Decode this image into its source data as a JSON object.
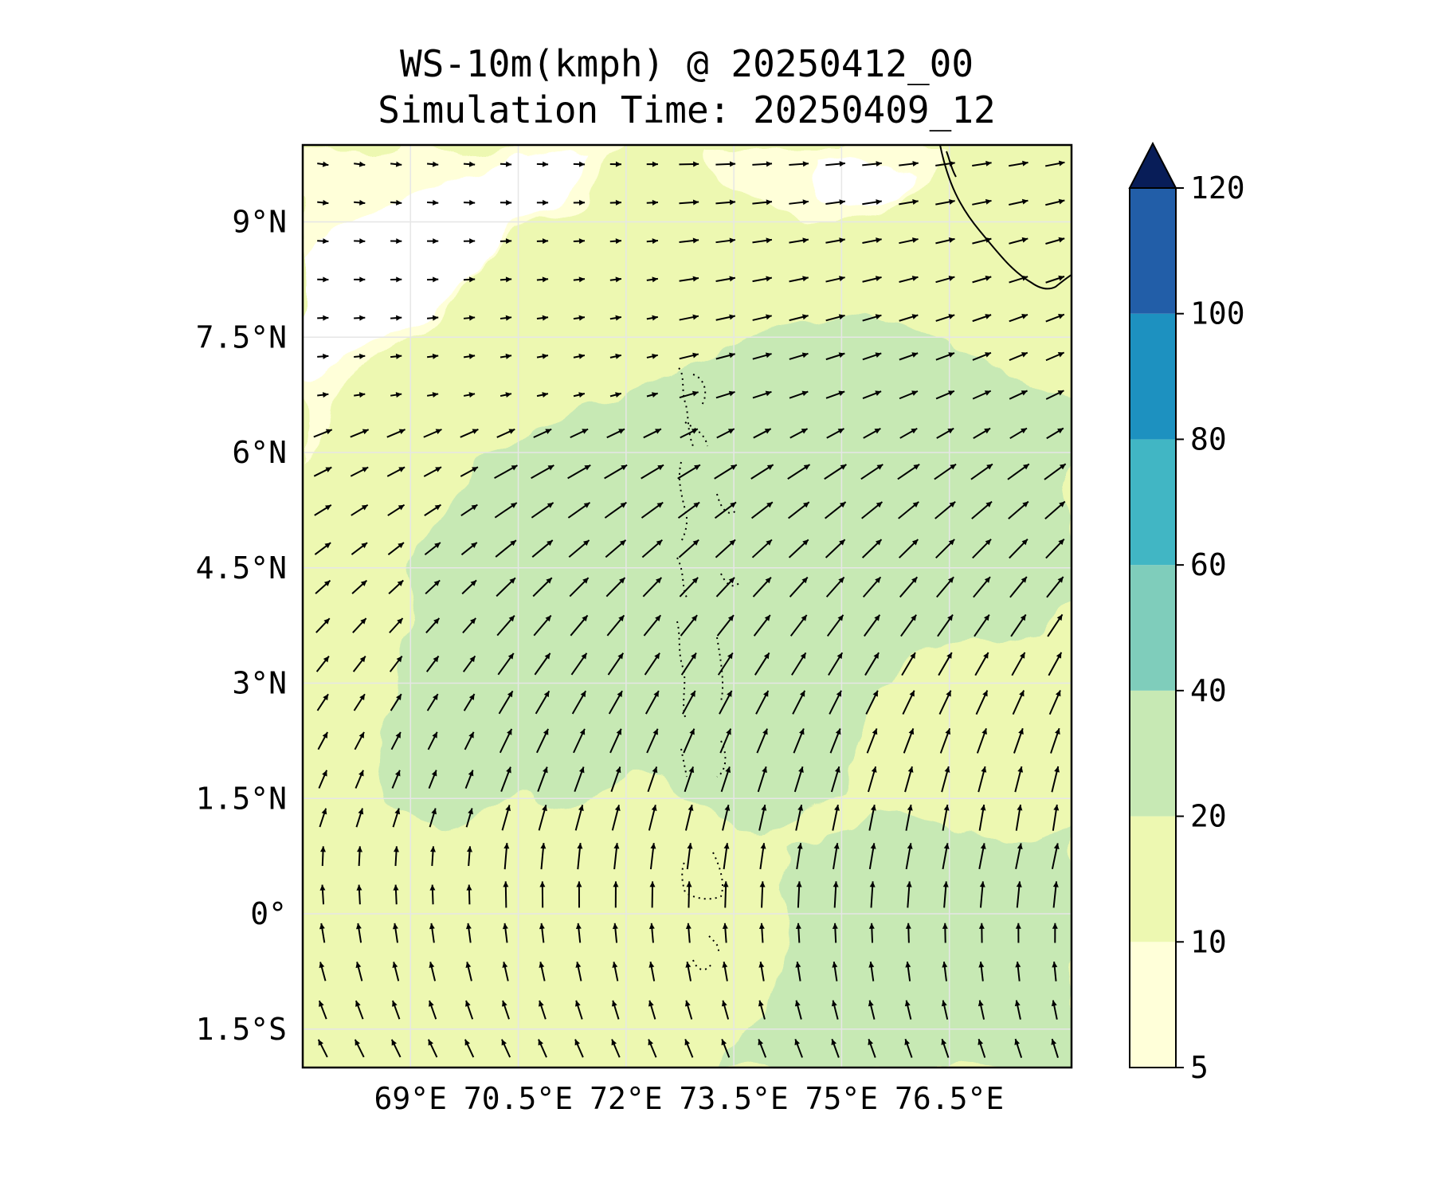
{
  "chart_data": {
    "type": "map",
    "title": "WS-10m(kmph) @ 20250412_00",
    "subtitle": "Simulation Time: 20250409_12",
    "variable": "10 m wind speed (kmph) with wind direction arrows",
    "lon_range": [
      67.5,
      78.2
    ],
    "lat_range": [
      -2.0,
      10.0
    ],
    "x_ticks": [
      {
        "value": 69.0,
        "label": "69°E"
      },
      {
        "value": 70.5,
        "label": "70.5°E"
      },
      {
        "value": 72.0,
        "label": "72°E"
      },
      {
        "value": 73.5,
        "label": "73.5°E"
      },
      {
        "value": 75.0,
        "label": "75°E"
      },
      {
        "value": 76.5,
        "label": "76.5°E"
      }
    ],
    "y_ticks": [
      {
        "value": 9.0,
        "label": "9°N"
      },
      {
        "value": 7.5,
        "label": "7.5°N"
      },
      {
        "value": 6.0,
        "label": "6°N"
      },
      {
        "value": 4.5,
        "label": "4.5°N"
      },
      {
        "value": 3.0,
        "label": "3°N"
      },
      {
        "value": 1.5,
        "label": "1.5°N"
      },
      {
        "value": 0.0,
        "label": "0°"
      },
      {
        "value": -1.5,
        "label": "1.5°S"
      }
    ],
    "colorbar": {
      "levels": [
        5,
        10,
        20,
        40,
        60,
        80,
        100,
        120
      ],
      "labels": [
        "5",
        "10",
        "20",
        "40",
        "60",
        "80",
        "100",
        "120"
      ],
      "colors": [
        "#ffffd9",
        "#edf8b1",
        "#c7e9b4",
        "#7fcdbb",
        "#41b6c4",
        "#1d91c0",
        "#225ea8",
        "#253494"
      ],
      "extend_color": "#081d58",
      "extend": "max"
    },
    "colors": {
      "below_min": "#ffffff",
      "band_5_10": "#ffffd9",
      "band_10_20": "#edf8b1",
      "band_20_40": "#c7e9b4",
      "grid": "#e6e6e6",
      "arrow": "#000000"
    }
  }
}
